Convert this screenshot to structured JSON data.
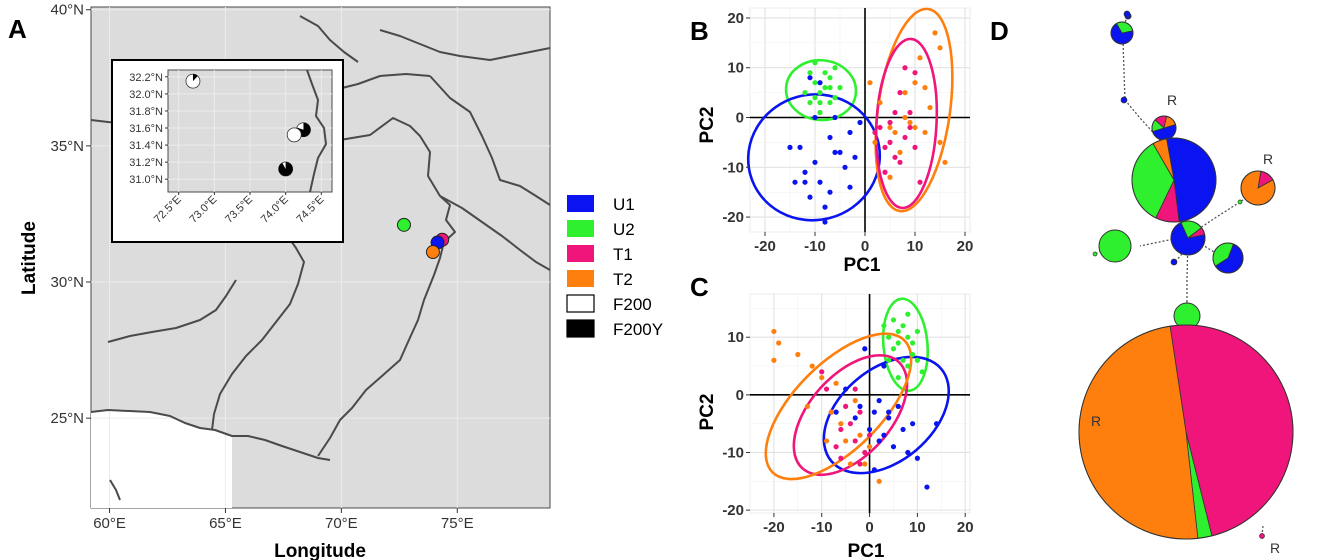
{
  "colors": {
    "U1": "#0a14f0",
    "U2": "#2ef02e",
    "T1": "#f0157a",
    "T2": "#ff7f0e",
    "land": "#dcdcdc",
    "border": "#4a4a4a",
    "grid": "#ebebeb"
  },
  "panel_letters": {
    "A": "A",
    "B": "B",
    "C": "C",
    "D": "D"
  },
  "legend": [
    {
      "key": "U1",
      "label": "U1",
      "fill": "#0a14f0"
    },
    {
      "key": "U2",
      "label": "U2",
      "fill": "#2ef02e"
    },
    {
      "key": "T1",
      "label": "T1",
      "fill": "#f0157a"
    },
    {
      "key": "T2",
      "label": "T2",
      "fill": "#ff7f0e"
    },
    {
      "key": "F200",
      "label": "F200",
      "fill": "#ffffff"
    },
    {
      "key": "F200Y",
      "label": "F200Y",
      "fill": "#000000"
    }
  ],
  "chart_data": [
    {
      "panel": "A",
      "type": "scatter",
      "subtype": "map",
      "xlabel": "Longitude",
      "ylabel": "Latitude",
      "xlim": [
        59.2,
        79.0
      ],
      "ylim": [
        21.7,
        40.1
      ],
      "xticks": [
        "60°E",
        "65°E",
        "70°E",
        "75°E"
      ],
      "xtick_values": [
        60,
        65,
        70,
        75
      ],
      "yticks": [
        "25°N",
        "30°N",
        "35°N",
        "40°N"
      ],
      "ytick_values": [
        25,
        30,
        35,
        40
      ],
      "points": [
        {
          "group": "U2",
          "lon": 72.7,
          "lat": 32.1
        },
        {
          "group": "T1",
          "lon": 74.35,
          "lat": 31.55
        },
        {
          "group": "U1",
          "lon": 74.15,
          "lat": 31.45
        },
        {
          "group": "T2",
          "lon": 73.95,
          "lat": 31.1
        }
      ],
      "inset": {
        "xlim": [
          72.35,
          74.65
        ],
        "ylim": [
          30.85,
          32.28
        ],
        "xticks": [
          "72.5°E",
          "73.0°E",
          "73.5°E",
          "74.0°E",
          "74.5°E"
        ],
        "xtick_values": [
          72.5,
          73.0,
          73.5,
          74.0,
          74.5
        ],
        "yticks": [
          "31.0°N",
          "31.2°N",
          "31.4°N",
          "31.6°N",
          "31.8°N",
          "32.0°N",
          "32.2°N"
        ],
        "ytick_values": [
          31.0,
          31.2,
          31.4,
          31.6,
          31.8,
          32.0,
          32.2
        ],
        "pies": [
          {
            "lon": 72.7,
            "lat": 32.15,
            "f200y_fraction": 0.12
          },
          {
            "lon": 74.25,
            "lat": 31.58,
            "f200y_fraction": 0.8
          },
          {
            "lon": 74.12,
            "lat": 31.52,
            "f200y_fraction": 0.0
          },
          {
            "lon": 74.0,
            "lat": 31.12,
            "f200y_fraction": 0.92
          }
        ]
      }
    },
    {
      "panel": "B",
      "type": "scatter",
      "xlabel": "PC1",
      "ylabel": "PC2",
      "xlim": [
        -23,
        21
      ],
      "ylim": [
        -23,
        22
      ],
      "xticks": [
        -20,
        -10,
        0,
        10,
        20
      ],
      "yticks": [
        -20,
        -10,
        0,
        10,
        20
      ],
      "ellipses": [
        {
          "group": "U2",
          "cx": -8.8,
          "cy": 5.5,
          "rx": 7.0,
          "ry": 6.0,
          "angle": 5
        },
        {
          "group": "U1",
          "cx": -10.2,
          "cy": -8.0,
          "rx": 13.2,
          "ry": 12.6,
          "angle": -15
        },
        {
          "group": "T2",
          "cx": 9.8,
          "cy": 1.5,
          "rx": 7.2,
          "ry": 20.5,
          "angle": 8
        },
        {
          "group": "T1",
          "cx": 8.3,
          "cy": -1.2,
          "rx": 6.0,
          "ry": 17.0,
          "angle": 3
        }
      ],
      "series": [
        {
          "name": "U1",
          "points": [
            [
              -15,
              -6
            ],
            [
              -13,
              -6
            ],
            [
              -12,
              -11
            ],
            [
              -12,
              -13
            ],
            [
              -10,
              -9
            ],
            [
              -9,
              -13
            ],
            [
              -8,
              -18
            ],
            [
              -8,
              -21
            ],
            [
              -7,
              -4
            ],
            [
              -6,
              -7
            ],
            [
              -5,
              -7
            ],
            [
              -4,
              -10
            ],
            [
              -3,
              -3
            ],
            [
              -2,
              -8
            ],
            [
              -1,
              -1
            ],
            [
              -10,
              0
            ],
            [
              -11,
              8
            ],
            [
              -9,
              7
            ],
            [
              -6,
              0
            ],
            [
              -14,
              -13
            ],
            [
              -7,
              -15
            ],
            [
              -3,
              -14
            ],
            [
              -11,
              -16
            ]
          ]
        },
        {
          "name": "U2",
          "points": [
            [
              -12,
              5
            ],
            [
              -11,
              9
            ],
            [
              -10,
              4
            ],
            [
              -10,
              7
            ],
            [
              -9,
              5
            ],
            [
              -9,
              3
            ],
            [
              -8,
              6
            ],
            [
              -8,
              9
            ],
            [
              -7,
              3
            ],
            [
              -7,
              8
            ],
            [
              -6,
              4
            ],
            [
              -6,
              10
            ],
            [
              -5,
              6
            ],
            [
              -9,
              1
            ],
            [
              -10,
              11
            ],
            [
              -11,
              3
            ],
            [
              -7,
              6
            ]
          ]
        },
        {
          "name": "T1",
          "points": [
            [
              2,
              -3
            ],
            [
              3,
              -2
            ],
            [
              4,
              -6
            ],
            [
              5,
              -5
            ],
            [
              6,
              -8
            ],
            [
              6,
              1
            ],
            [
              7,
              -9
            ],
            [
              8,
              -4
            ],
            [
              8,
              10
            ],
            [
              9,
              -2
            ],
            [
              9,
              1
            ],
            [
              10,
              -6
            ],
            [
              10,
              9
            ],
            [
              11,
              -13
            ],
            [
              4,
              -11
            ],
            [
              7,
              5
            ],
            [
              5,
              -1
            ]
          ]
        },
        {
          "name": "T2",
          "points": [
            [
              2,
              -5
            ],
            [
              3,
              3
            ],
            [
              5,
              -2
            ],
            [
              5,
              -12
            ],
            [
              6,
              -3
            ],
            [
              7,
              -7
            ],
            [
              8,
              0
            ],
            [
              8,
              5
            ],
            [
              9,
              -1
            ],
            [
              10,
              -2
            ],
            [
              10,
              7
            ],
            [
              11,
              12
            ],
            [
              12,
              -3
            ],
            [
              12,
              6
            ],
            [
              13,
              2
            ],
            [
              14,
              17
            ],
            [
              15,
              14
            ],
            [
              15,
              -5
            ],
            [
              16,
              -9
            ],
            [
              1,
              7
            ]
          ]
        }
      ]
    },
    {
      "panel": "C",
      "type": "scatter",
      "xlabel": "PC1",
      "ylabel": "PC2",
      "xlim": [
        -25,
        21
      ],
      "ylim": [
        -20.5,
        17.5
      ],
      "xticks": [
        -20,
        -10,
        0,
        10,
        20
      ],
      "yticks": [
        -20,
        -10,
        0,
        10
      ],
      "ellipses": [
        {
          "group": "U2",
          "cx": 7.5,
          "cy": 8.7,
          "rx": 4.6,
          "ry": 8.0,
          "angle": -5
        },
        {
          "group": "U1",
          "cx": 3.5,
          "cy": -3.5,
          "rx": 15.0,
          "ry": 8.0,
          "angle": -40
        },
        {
          "group": "T1",
          "cx": -4.0,
          "cy": -3.5,
          "rx": 15.0,
          "ry": 7.0,
          "angle": -48
        },
        {
          "group": "T2",
          "cx": -6.5,
          "cy": -2.0,
          "rx": 19.5,
          "ry": 7.5,
          "angle": -45
        }
      ],
      "series": [
        {
          "name": "U1",
          "points": [
            [
              -5,
              1
            ],
            [
              -3,
              -4
            ],
            [
              -2,
              -2
            ],
            [
              0,
              -6
            ],
            [
              1,
              -3
            ],
            [
              2,
              -1
            ],
            [
              3,
              -7
            ],
            [
              4,
              -4
            ],
            [
              5,
              -9
            ],
            [
              6,
              -2
            ],
            [
              7,
              -6
            ],
            [
              8,
              -10
            ],
            [
              9,
              -5
            ],
            [
              10,
              -11
            ],
            [
              12,
              -16
            ],
            [
              14,
              -5
            ],
            [
              -1,
              8
            ],
            [
              3,
              5
            ],
            [
              -7,
              -3
            ],
            [
              1,
              -13
            ],
            [
              4,
              -3
            ],
            [
              2,
              -8
            ]
          ]
        },
        {
          "name": "U2",
          "points": [
            [
              3,
              12
            ],
            [
              4,
              10
            ],
            [
              5,
              8
            ],
            [
              5,
              13
            ],
            [
              6,
              11
            ],
            [
              6,
              9
            ],
            [
              7,
              6
            ],
            [
              7,
              12
            ],
            [
              8,
              10
            ],
            [
              8,
              14
            ],
            [
              9,
              9
            ],
            [
              9,
              7
            ],
            [
              10,
              11
            ],
            [
              10,
              6
            ],
            [
              11,
              4
            ],
            [
              6,
              3
            ],
            [
              4,
              6
            ],
            [
              8,
              5
            ]
          ]
        },
        {
          "name": "T1",
          "points": [
            [
              -10,
              4
            ],
            [
              -8,
              -3
            ],
            [
              -7,
              -9
            ],
            [
              -6,
              -11
            ],
            [
              -5,
              -2
            ],
            [
              -4,
              -5
            ],
            [
              -3,
              -8
            ],
            [
              -2,
              -3
            ],
            [
              -1,
              -10
            ],
            [
              0,
              -7
            ],
            [
              -9,
              1
            ],
            [
              -6,
              -6
            ],
            [
              -2,
              -12
            ],
            [
              -3,
              1
            ]
          ]
        },
        {
          "name": "T2",
          "points": [
            [
              -20,
              11
            ],
            [
              -19,
              9
            ],
            [
              -20,
              6
            ],
            [
              -15,
              7
            ],
            [
              -12,
              5
            ],
            [
              -10,
              3
            ],
            [
              -8,
              -3
            ],
            [
              -6,
              -5
            ],
            [
              -5,
              -8
            ],
            [
              -3,
              -1
            ],
            [
              -2,
              -7
            ],
            [
              -1,
              -12
            ],
            [
              0,
              -9
            ],
            [
              2,
              -15
            ],
            [
              -13,
              -2
            ],
            [
              -7,
              2
            ],
            [
              -4,
              -12
            ],
            [
              -9,
              -8
            ]
          ]
        }
      ]
    },
    {
      "panel": "D",
      "type": "other",
      "subtype": "haplotype network",
      "node_labels": [
        "R",
        "R",
        "R",
        "R"
      ],
      "nodes": [
        {
          "id": "h1",
          "size": 10,
          "counts": {
            "U1": 7,
            "U2": 3
          }
        },
        {
          "id": "h2",
          "size": 2,
          "counts": {
            "U1": 2
          }
        },
        {
          "id": "h3",
          "size": 1,
          "counts": {
            "U1": 1
          }
        },
        {
          "id": "h4",
          "size": 6,
          "counts": {
            "U1": 3,
            "U2": 1,
            "T1": 1,
            "T2": 1
          },
          "label": "R"
        },
        {
          "id": "h5",
          "size": 55,
          "counts": {
            "U1": 28,
            "U2": 19,
            "T1": 5,
            "T2": 3
          }
        },
        {
          "id": "h6",
          "size": 14,
          "counts": {
            "T2": 12,
            "T1": 2
          },
          "label": "R"
        },
        {
          "id": "h7",
          "size": 12,
          "counts": {
            "U2": 12
          }
        },
        {
          "id": "h8",
          "size": 14,
          "counts": {
            "U1": 10,
            "U2": 3,
            "T1": 1
          }
        },
        {
          "id": "h9",
          "size": 10,
          "counts": {
            "U1": 6,
            "U2": 4
          }
        },
        {
          "id": "h10",
          "size": 7,
          "counts": {
            "U2": 7
          }
        },
        {
          "id": "h11",
          "size": 330,
          "counts": {
            "T1": 160,
            "T2": 163,
            "U2": 7
          },
          "label": "R"
        },
        {
          "id": "h12",
          "size": 1,
          "counts": {
            "T1": 1
          },
          "label": "R"
        }
      ]
    }
  ]
}
